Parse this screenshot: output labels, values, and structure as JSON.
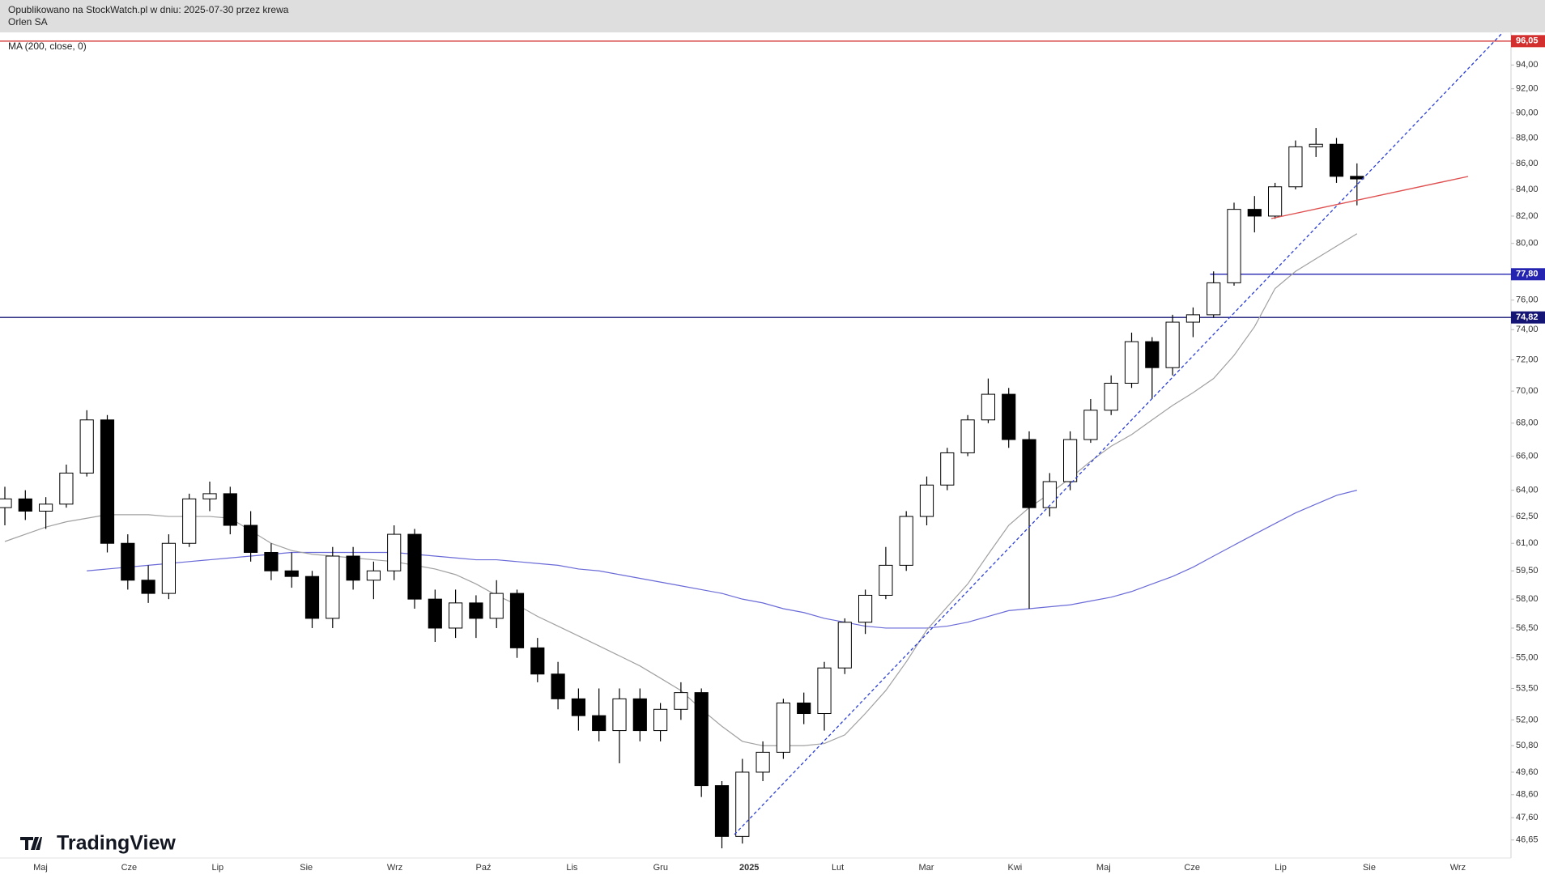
{
  "header": {
    "published": "Opublikowano na StockWatch.pl w dniu: 2025-07-30 przez krewa",
    "symbol": "Orlen SA"
  },
  "watermark": "TradingView",
  "chart_data": {
    "type": "candlestick",
    "log_scale": true,
    "ylim": [
      45.93,
      96.2
    ],
    "yticks": [
      {
        "value": 94,
        "label": "94,00"
      },
      {
        "value": 92,
        "label": "92,00"
      },
      {
        "value": 90,
        "label": "90,00"
      },
      {
        "value": 88,
        "label": "88,00"
      },
      {
        "value": 86,
        "label": "86,00"
      },
      {
        "value": 84,
        "label": "84,00"
      },
      {
        "value": 82,
        "label": "82,00"
      },
      {
        "value": 80,
        "label": "80,00"
      },
      {
        "value": 76,
        "label": "76,00"
      },
      {
        "value": 74,
        "label": "74,00"
      },
      {
        "value": 72,
        "label": "72,00"
      },
      {
        "value": 70,
        "label": "70,00"
      },
      {
        "value": 68,
        "label": "68,00"
      },
      {
        "value": 66,
        "label": "66,00"
      },
      {
        "value": 64,
        "label": "64,00"
      },
      {
        "value": 62.5,
        "label": "62,50"
      },
      {
        "value": 61,
        "label": "61,00"
      },
      {
        "value": 59.5,
        "label": "59,50"
      },
      {
        "value": 58,
        "label": "58,00"
      },
      {
        "value": 56.5,
        "label": "56,50"
      },
      {
        "value": 55,
        "label": "55,00"
      },
      {
        "value": 53.5,
        "label": "53,50"
      },
      {
        "value": 52,
        "label": "52,00"
      },
      {
        "value": 50.8,
        "label": "50,80"
      },
      {
        "value": 49.6,
        "label": "49,60"
      },
      {
        "value": 48.6,
        "label": "48,60"
      },
      {
        "value": 47.6,
        "label": "47,60"
      },
      {
        "value": 46.65,
        "label": "46,65"
      }
    ],
    "levels": [
      {
        "value": 96.05,
        "label": "96,05",
        "color": "#d32f2f"
      },
      {
        "value": 77.8,
        "label": "77,80",
        "color": "#2424b0"
      },
      {
        "value": 74.82,
        "label": "74,82",
        "color": "#151575"
      }
    ],
    "x_labels": [
      "Maj",
      "Cze",
      "Lip",
      "Sie",
      "Wrz",
      "Paź",
      "Lis",
      "Gru",
      "2025",
      "Lut",
      "Mar",
      "Kwi",
      "Maj",
      "Cze",
      "Lip",
      "Sie",
      "Wrz"
    ],
    "up_color": "#ffffff",
    "down_color": "#000000",
    "wick_color": "#000000",
    "open": [
      63,
      63.5,
      62.8,
      63.2,
      65,
      68.2,
      61,
      59,
      58.3,
      61,
      63.5,
      63.8,
      62,
      60.5,
      59.5,
      59.2,
      57,
      60.3,
      59,
      59.5,
      61.5,
      58,
      56.5,
      57.8,
      57,
      58.3,
      55.5,
      54.2,
      53,
      52.2,
      51.5,
      53,
      51.5,
      52.5,
      53.3,
      49,
      46.8,
      49.6,
      50.5,
      52.8,
      52.3,
      54.5,
      56.8,
      58.2,
      59.8,
      62.5,
      64.3,
      66.2,
      68.2,
      69.8,
      67,
      63,
      64.5,
      67,
      68.8,
      70.5,
      73.2,
      71.5,
      74.5,
      75,
      77.2,
      82.5,
      82,
      84.2,
      87.3,
      87.5,
      85
    ],
    "high": [
      64.2,
      64,
      63.6,
      65.5,
      68.8,
      68.5,
      61.5,
      59.8,
      61.5,
      63.8,
      64.5,
      64.2,
      62.8,
      61,
      60.5,
      59.5,
      60.8,
      60.8,
      60,
      62,
      61.8,
      58.5,
      58.5,
      58.2,
      59,
      58.5,
      56,
      54.8,
      53.5,
      53.5,
      53.5,
      53.5,
      52.8,
      53.8,
      53.5,
      49.2,
      50.2,
      51,
      53,
      53.3,
      54.8,
      57,
      58.5,
      60.8,
      62.8,
      64.8,
      66.5,
      68.5,
      70.8,
      70.2,
      67.5,
      65,
      67.5,
      69.5,
      71,
      73.8,
      73.5,
      75,
      75.5,
      78,
      83,
      83.5,
      84.5,
      87.8,
      88.8,
      88,
      86
    ],
    "low": [
      62,
      62.3,
      61.8,
      63,
      64.8,
      60.5,
      58.5,
      57.8,
      58,
      60.8,
      62.8,
      61.5,
      60,
      59,
      58.6,
      56.5,
      56.5,
      58.5,
      58,
      59,
      57.5,
      55.8,
      56,
      56,
      56.5,
      55,
      53.8,
      52.5,
      51.5,
      51,
      50,
      51,
      51,
      52,
      48.5,
      46.3,
      46.5,
      49.2,
      50.2,
      51.8,
      51.5,
      54.2,
      56.2,
      58,
      59.5,
      62,
      64,
      66,
      68,
      66.5,
      57.5,
      62.5,
      64,
      66.8,
      68.5,
      70.2,
      69.5,
      71,
      73.5,
      74.8,
      77,
      80.8,
      81.8,
      84,
      86.5,
      84.5,
      82.8
    ],
    "close": [
      63.5,
      62.8,
      63.2,
      65,
      68.2,
      61,
      59,
      58.3,
      61,
      63.5,
      63.8,
      62,
      60.5,
      59.5,
      59.2,
      57,
      60.3,
      59,
      59.5,
      61.5,
      58,
      56.5,
      57.8,
      57,
      58.3,
      55.5,
      54.2,
      53,
      52.2,
      51.5,
      53,
      51.5,
      52.5,
      53.3,
      49,
      46.8,
      49.6,
      50.5,
      52.8,
      52.3,
      54.5,
      56.8,
      58.2,
      59.8,
      62.5,
      64.3,
      66.2,
      68.2,
      69.8,
      67,
      63,
      64.5,
      67,
      68.8,
      70.5,
      73.2,
      71.5,
      74.5,
      75,
      77.2,
      82.5,
      82,
      84.2,
      87.3,
      87.5,
      85,
      84.8
    ],
    "overlays": [
      {
        "name": "MA (200, close, 0)",
        "color": "#6a6ad8",
        "values": [
          null,
          null,
          null,
          null,
          59.5,
          59.6,
          59.7,
          59.8,
          59.9,
          60.0,
          60.1,
          60.2,
          60.3,
          60.4,
          60.5,
          60.5,
          60.5,
          60.5,
          60.5,
          60.5,
          60.4,
          60.3,
          60.2,
          60.1,
          60.1,
          60.0,
          59.9,
          59.8,
          59.6,
          59.5,
          59.3,
          59.1,
          58.9,
          58.7,
          58.5,
          58.3,
          58.0,
          57.8,
          57.5,
          57.3,
          57.0,
          56.8,
          56.6,
          56.5,
          56.5,
          56.5,
          56.6,
          56.8,
          57.1,
          57.4,
          57.5,
          57.6,
          57.7,
          57.9,
          58.1,
          58.4,
          58.8,
          59.2,
          59.7,
          60.3,
          60.9,
          61.5,
          62.1,
          62.7,
          63.2,
          63.7,
          64.0
        ]
      },
      {
        "color": "#a0a0a0",
        "values": [
          61.1,
          61.5,
          61.9,
          62.2,
          62.4,
          62.6,
          62.6,
          62.6,
          62.5,
          62.5,
          62.5,
          62.4,
          61.7,
          61.0,
          60.6,
          60.4,
          60.3,
          60.2,
          60.1,
          60.0,
          59.8,
          59.6,
          59.3,
          58.8,
          58.2,
          57.7,
          57.1,
          56.6,
          56.1,
          55.6,
          55.1,
          54.6,
          54.0,
          53.4,
          52.5,
          51.7,
          51.0,
          50.8,
          50.8,
          50.8,
          50.9,
          51.3,
          52.3,
          53.4,
          54.8,
          56.4,
          57.6,
          58.8,
          60.4,
          62.0,
          63.0,
          63.8,
          64.7,
          65.7,
          66.6,
          67.3,
          68.2,
          69.1,
          69.9,
          70.8,
          72.3,
          74.2,
          76.8,
          78.0,
          78.9,
          79.8,
          80.7
        ]
      }
    ]
  }
}
